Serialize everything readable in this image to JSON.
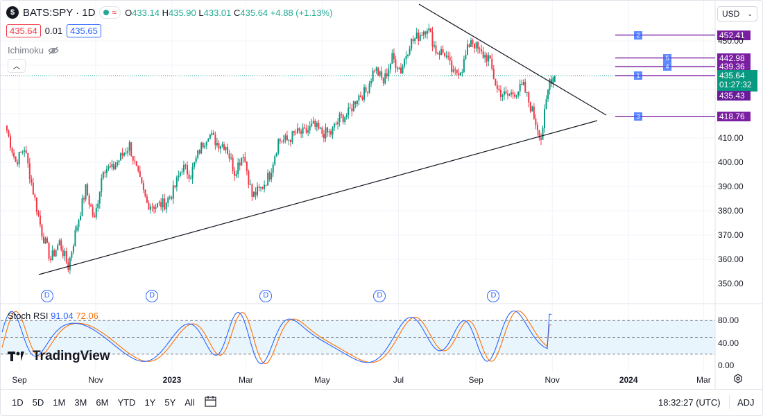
{
  "header": {
    "symbol_icon": "$",
    "symbol": "BATS:SPY · 1D",
    "wave_icon": "≈",
    "open_label": "O",
    "open": "433.14",
    "high_label": "H",
    "high": "435.90",
    "low_label": "L",
    "low": "433.01",
    "close_label": "C",
    "close": "435.64",
    "change": "+4.88 (+1.13%)",
    "bid": "435.64",
    "spread": "0.01",
    "ask": "435.65",
    "indicator": "Ichimoku",
    "currency": "USD"
  },
  "chart_data": {
    "type": "candlestick",
    "symbol": "BATS:SPY",
    "interval": "1D",
    "y_axis": {
      "ticks": [
        350,
        360,
        370,
        380,
        390,
        400,
        410,
        450
      ],
      "tick_labels": [
        "350.00",
        "360.00",
        "370.00",
        "380.00",
        "390.00",
        "400.00",
        "410.00",
        "450.00"
      ]
    },
    "x_axis": {
      "ticks": [
        "Sep",
        "Nov",
        "2023",
        "Mar",
        "May",
        "Jul",
        "Sep",
        "Nov",
        "2024",
        "Mar"
      ]
    },
    "close_path": [
      {
        "date": "2022-08-22",
        "close": 413
      },
      {
        "date": "2022-08-29",
        "close": 400
      },
      {
        "date": "2022-09-05",
        "close": 406
      },
      {
        "date": "2022-09-12",
        "close": 388
      },
      {
        "date": "2022-09-19",
        "close": 371
      },
      {
        "date": "2022-09-26",
        "close": 360
      },
      {
        "date": "2022-10-03",
        "close": 367
      },
      {
        "date": "2022-10-10",
        "close": 357
      },
      {
        "date": "2022-10-17",
        "close": 374
      },
      {
        "date": "2022-10-24",
        "close": 389
      },
      {
        "date": "2022-10-31",
        "close": 376
      },
      {
        "date": "2022-11-07",
        "close": 398
      },
      {
        "date": "2022-11-14",
        "close": 397
      },
      {
        "date": "2022-11-21",
        "close": 402
      },
      {
        "date": "2022-11-28",
        "close": 407
      },
      {
        "date": "2022-12-05",
        "close": 394
      },
      {
        "date": "2022-12-12",
        "close": 383
      },
      {
        "date": "2022-12-19",
        "close": 382
      },
      {
        "date": "2022-12-26",
        "close": 383
      },
      {
        "date": "2023-01-02",
        "close": 388
      },
      {
        "date": "2023-01-09",
        "close": 398
      },
      {
        "date": "2023-01-16",
        "close": 395
      },
      {
        "date": "2023-01-23",
        "close": 405
      },
      {
        "date": "2023-01-30",
        "close": 412
      },
      {
        "date": "2023-02-06",
        "close": 408
      },
      {
        "date": "2023-02-13",
        "close": 407
      },
      {
        "date": "2023-02-20",
        "close": 396
      },
      {
        "date": "2023-02-27",
        "close": 404
      },
      {
        "date": "2023-03-06",
        "close": 386
      },
      {
        "date": "2023-03-13",
        "close": 389
      },
      {
        "date": "2023-03-20",
        "close": 395
      },
      {
        "date": "2023-03-27",
        "close": 409
      },
      {
        "date": "2023-04-03",
        "close": 409
      },
      {
        "date": "2023-04-10",
        "close": 412
      },
      {
        "date": "2023-04-17",
        "close": 412
      },
      {
        "date": "2023-04-24",
        "close": 415
      },
      {
        "date": "2023-05-01",
        "close": 412
      },
      {
        "date": "2023-05-08",
        "close": 412
      },
      {
        "date": "2023-05-15",
        "close": 418
      },
      {
        "date": "2023-05-22",
        "close": 420
      },
      {
        "date": "2023-05-29",
        "close": 427
      },
      {
        "date": "2023-06-05",
        "close": 429
      },
      {
        "date": "2023-06-12",
        "close": 439
      },
      {
        "date": "2023-06-19",
        "close": 433
      },
      {
        "date": "2023-06-26",
        "close": 443
      },
      {
        "date": "2023-07-03",
        "close": 438
      },
      {
        "date": "2023-07-10",
        "close": 449
      },
      {
        "date": "2023-07-17",
        "close": 452
      },
      {
        "date": "2023-07-24",
        "close": 456
      },
      {
        "date": "2023-07-31",
        "close": 446
      },
      {
        "date": "2023-08-07",
        "close": 445
      },
      {
        "date": "2023-08-14",
        "close": 436
      },
      {
        "date": "2023-08-21",
        "close": 439
      },
      {
        "date": "2023-08-28",
        "close": 451
      },
      {
        "date": "2023-09-04",
        "close": 445
      },
      {
        "date": "2023-09-11",
        "close": 443
      },
      {
        "date": "2023-09-18",
        "close": 430
      },
      {
        "date": "2023-09-25",
        "close": 427
      },
      {
        "date": "2023-10-02",
        "close": 429
      },
      {
        "date": "2023-10-09",
        "close": 431
      },
      {
        "date": "2023-10-16",
        "close": 421
      },
      {
        "date": "2023-10-23",
        "close": 410
      },
      {
        "date": "2023-10-30",
        "close": 434
      },
      {
        "date": "2023-11-03",
        "close": 435.64
      }
    ],
    "price_levels": [
      {
        "label": "2",
        "price": "452.41",
        "badge": "2"
      },
      {
        "label": "5",
        "price": "442.98",
        "badge": "5"
      },
      {
        "label": "4",
        "price": "439.36",
        "badge": "4"
      },
      {
        "label": "1",
        "price": "435.64",
        "badge": "1"
      },
      {
        "label": "3",
        "price": "418.76",
        "badge": "3"
      }
    ],
    "current_price": "435.64",
    "countdown": "01:27:32",
    "prev_close_tag": "435.43",
    "dividend_marker": "D",
    "stoch_rsi": {
      "label": "Stoch RSI",
      "k": "91.04",
      "d": "72.06",
      "ticks": [
        "80.00",
        "40.00",
        "0.00"
      ],
      "upper_band": 80,
      "lower_band": 20
    },
    "legend_placement": "top-left",
    "grid": true
  },
  "ranges": [
    "1D",
    "5D",
    "1M",
    "3M",
    "6M",
    "YTD",
    "1Y",
    "5Y",
    "All"
  ],
  "footer": {
    "clock": "18:32:27 (UTC)",
    "adj": "ADJ"
  },
  "brand": "TradingView"
}
